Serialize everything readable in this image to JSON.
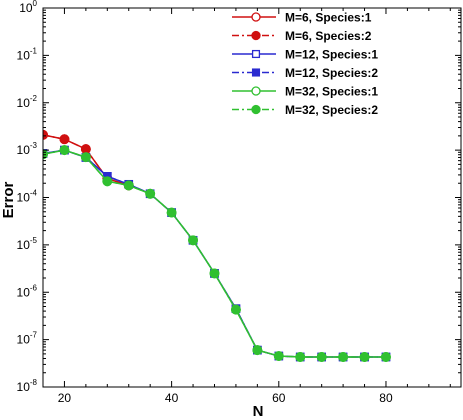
{
  "chart_data": {
    "type": "line",
    "xlabel": "N",
    "ylabel": "Error",
    "xlim": [
      16,
      94
    ],
    "ylim": [
      1e-08,
      1
    ],
    "yscale": "log",
    "x_ticks": [
      {
        "value": 20,
        "label": "20"
      },
      {
        "value": 40,
        "label": "40"
      },
      {
        "value": 60,
        "label": "60"
      },
      {
        "value": 80,
        "label": "80"
      }
    ],
    "y_ticks": [
      {
        "value": 1e-08,
        "base": "10",
        "exp": "-8"
      },
      {
        "value": 1e-07,
        "base": "10",
        "exp": "-7"
      },
      {
        "value": 1e-06,
        "base": "10",
        "exp": "-6"
      },
      {
        "value": 1e-05,
        "base": "10",
        "exp": "-5"
      },
      {
        "value": 0.0001,
        "base": "10",
        "exp": "-4"
      },
      {
        "value": 0.001,
        "base": "10",
        "exp": "-3"
      },
      {
        "value": 0.01,
        "base": "10",
        "exp": "-2"
      },
      {
        "value": 0.1,
        "base": "10",
        "exp": "-1"
      },
      {
        "value": 1,
        "base": "10",
        "exp": "0"
      }
    ],
    "grid": false,
    "legend_position": "top-right",
    "series": [
      {
        "name": "M=6, Species:1",
        "color": "#d01010",
        "dash": "solid",
        "marker": "circle-open",
        "x": [
          16,
          20,
          24,
          28,
          32
        ],
        "y": [
          0.0021,
          0.0017,
          0.00105,
          0.00025,
          0.00018
        ]
      },
      {
        "name": "M=6, Species:2",
        "color": "#d01010",
        "dash": "dashdot",
        "marker": "circle-filled",
        "x": [
          16,
          20,
          24,
          28,
          32
        ],
        "y": [
          0.0021,
          0.0017,
          0.00105,
          0.00025,
          0.00018
        ]
      },
      {
        "name": "M=12, Species:1",
        "color": "#2a2ad0",
        "dash": "solid",
        "marker": "square-open",
        "x": [
          16,
          20,
          24,
          28,
          32,
          36,
          40,
          44,
          48,
          52,
          56,
          60,
          64,
          68,
          72,
          76,
          80
        ],
        "y": [
          0.00085,
          0.001,
          0.0007,
          0.00028,
          0.00019,
          0.00012,
          4.8e-05,
          1.25e-05,
          2.5e-06,
          4.5e-07,
          6e-08,
          4.5e-08,
          4.3e-08,
          4.3e-08,
          4.3e-08,
          4.3e-08,
          4.3e-08
        ]
      },
      {
        "name": "M=12, Species:2",
        "color": "#2a2ad0",
        "dash": "dashdot",
        "marker": "square-filled",
        "x": [
          16,
          20,
          24,
          28,
          32,
          36,
          40,
          44,
          48,
          52,
          56,
          60,
          64,
          68,
          72,
          76,
          80
        ],
        "y": [
          0.00085,
          0.001,
          0.0007,
          0.00028,
          0.00019,
          0.00012,
          4.8e-05,
          1.25e-05,
          2.5e-06,
          4.5e-07,
          6e-08,
          4.5e-08,
          4.3e-08,
          4.3e-08,
          4.3e-08,
          4.3e-08,
          4.3e-08
        ]
      },
      {
        "name": "M=32, Species:1",
        "color": "#30c030",
        "dash": "solid",
        "marker": "circle-open",
        "x": [
          16,
          20,
          24,
          28,
          32,
          36,
          40,
          44,
          48,
          52,
          56,
          60,
          64,
          68,
          72,
          76,
          80
        ],
        "y": [
          0.00082,
          0.001,
          0.00071,
          0.00022,
          0.00018,
          0.00012,
          4.8e-05,
          1.25e-05,
          2.5e-06,
          4.3e-07,
          6e-08,
          4.5e-08,
          4.3e-08,
          4.3e-08,
          4.3e-08,
          4.3e-08,
          4.3e-08
        ]
      },
      {
        "name": "M=32, Species:2",
        "color": "#30c030",
        "dash": "dashdot",
        "marker": "circle-filled",
        "x": [
          16,
          20,
          24,
          28,
          32,
          36,
          40,
          44,
          48,
          52,
          56,
          60,
          64,
          68,
          72,
          76,
          80
        ],
        "y": [
          0.00082,
          0.001,
          0.00071,
          0.00022,
          0.00018,
          0.00012,
          4.8e-05,
          1.25e-05,
          2.5e-06,
          4.3e-07,
          6e-08,
          4.5e-08,
          4.3e-08,
          4.3e-08,
          4.3e-08,
          4.3e-08,
          4.3e-08
        ]
      }
    ]
  }
}
